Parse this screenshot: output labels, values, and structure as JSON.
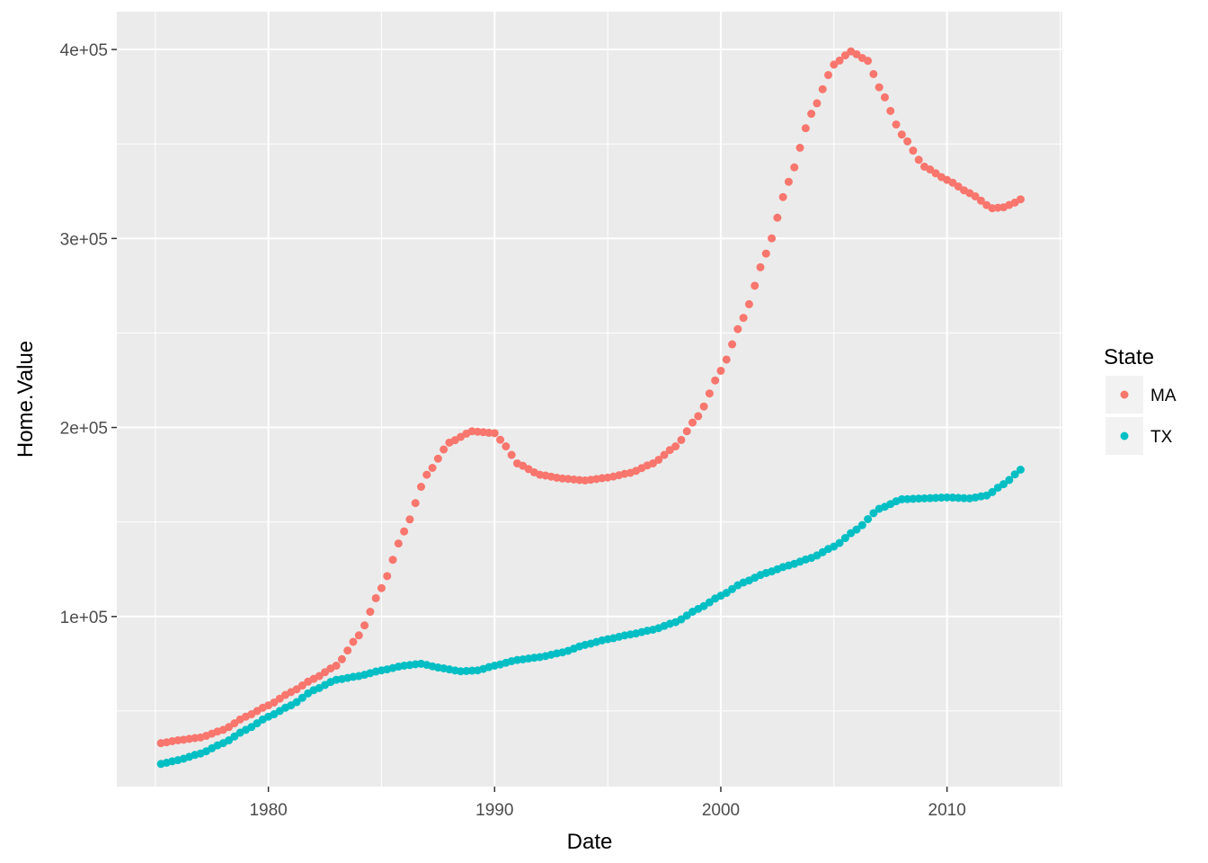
{
  "chart_data": {
    "type": "scatter",
    "xlabel": "Date",
    "ylabel": "Home.Value",
    "xlim": [
      1973.3,
      2015.1
    ],
    "ylim": [
      10000,
      420000
    ],
    "x_ticks": [
      1980,
      1990,
      2000,
      2010
    ],
    "x_tick_labels": [
      "1980",
      "1990",
      "2000",
      "2010"
    ],
    "y_ticks": [
      100000,
      200000,
      300000,
      400000
    ],
    "y_tick_labels": [
      "1e+05",
      "2e+05",
      "3e+05",
      "4e+05"
    ],
    "grid": true,
    "legend": {
      "title": "State",
      "position": "right"
    },
    "point_step_years": 0.25,
    "series": [
      {
        "name": "MA",
        "color": "#F8766D",
        "points": [
          [
            1975.25,
            33000
          ],
          [
            1976.0,
            34500
          ],
          [
            1977.0,
            36000
          ],
          [
            1978.0,
            40000
          ],
          [
            1979.0,
            47000
          ],
          [
            1980.0,
            53000
          ],
          [
            1981.0,
            60000
          ],
          [
            1982.0,
            67000
          ],
          [
            1983.0,
            74000
          ],
          [
            1984.0,
            90000
          ],
          [
            1985.0,
            115000
          ],
          [
            1986.0,
            145000
          ],
          [
            1987.0,
            175000
          ],
          [
            1988.0,
            192000
          ],
          [
            1989.0,
            198000
          ],
          [
            1990.0,
            197000
          ],
          [
            1990.5,
            190000
          ],
          [
            1991.0,
            181000
          ],
          [
            1992.0,
            175000
          ],
          [
            1993.0,
            173000
          ],
          [
            1994.0,
            172000
          ],
          [
            1995.0,
            173500
          ],
          [
            1996.0,
            176000
          ],
          [
            1997.0,
            181000
          ],
          [
            1998.0,
            190000
          ],
          [
            1999.0,
            206000
          ],
          [
            2000.0,
            230000
          ],
          [
            2001.0,
            258000
          ],
          [
            2002.0,
            292000
          ],
          [
            2003.0,
            330000
          ],
          [
            2004.0,
            366000
          ],
          [
            2005.0,
            392000
          ],
          [
            2005.75,
            399000
          ],
          [
            2006.5,
            394000
          ],
          [
            2007.0,
            380000
          ],
          [
            2008.0,
            355000
          ],
          [
            2009.0,
            338000
          ],
          [
            2010.0,
            331000
          ],
          [
            2011.0,
            324000
          ],
          [
            2012.0,
            316000
          ],
          [
            2012.5,
            316500
          ],
          [
            2013.0,
            319000
          ],
          [
            2013.3,
            321000
          ]
        ]
      },
      {
        "name": "TX",
        "color": "#00BFC4",
        "points": [
          [
            1975.25,
            22000
          ],
          [
            1976.0,
            24000
          ],
          [
            1977.0,
            27500
          ],
          [
            1978.0,
            33000
          ],
          [
            1979.0,
            40000
          ],
          [
            1980.0,
            47000
          ],
          [
            1981.0,
            53000
          ],
          [
            1982.0,
            61000
          ],
          [
            1983.0,
            66500
          ],
          [
            1984.0,
            68500
          ],
          [
            1985.0,
            71500
          ],
          [
            1986.0,
            74000
          ],
          [
            1986.75,
            75000
          ],
          [
            1987.5,
            73000
          ],
          [
            1988.5,
            71000
          ],
          [
            1989.25,
            71500
          ],
          [
            1990.0,
            74000
          ],
          [
            1991.0,
            77000
          ],
          [
            1992.0,
            78500
          ],
          [
            1993.0,
            81000
          ],
          [
            1994.0,
            85000
          ],
          [
            1995.0,
            88000
          ],
          [
            1996.0,
            90500
          ],
          [
            1997.0,
            93000
          ],
          [
            1998.0,
            97000
          ],
          [
            1999.0,
            104000
          ],
          [
            2000.0,
            111000
          ],
          [
            2001.0,
            118000
          ],
          [
            2002.0,
            123000
          ],
          [
            2003.0,
            127000
          ],
          [
            2004.0,
            131000
          ],
          [
            2005.0,
            137000
          ],
          [
            2006.0,
            146000
          ],
          [
            2007.0,
            157000
          ],
          [
            2008.0,
            162000
          ],
          [
            2009.0,
            162500
          ],
          [
            2010.0,
            163000
          ],
          [
            2011.0,
            162500
          ],
          [
            2011.75,
            164000
          ],
          [
            2012.5,
            170000
          ],
          [
            2013.3,
            178000
          ]
        ]
      }
    ]
  }
}
